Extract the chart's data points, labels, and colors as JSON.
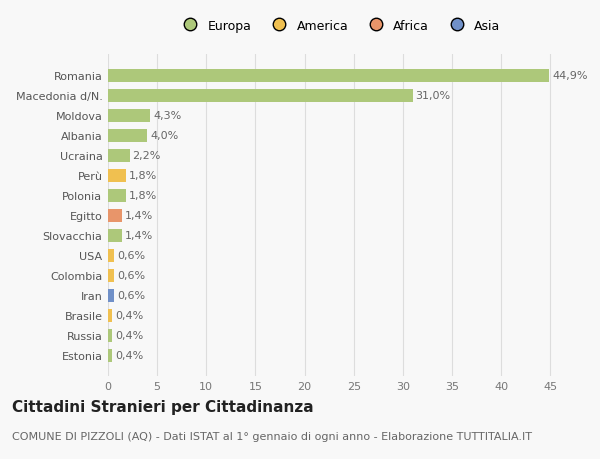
{
  "countries": [
    "Romania",
    "Macedonia d/N.",
    "Moldova",
    "Albania",
    "Ucraina",
    "Perù",
    "Polonia",
    "Egitto",
    "Slovacchia",
    "USA",
    "Colombia",
    "Iran",
    "Brasile",
    "Russia",
    "Estonia"
  ],
  "values": [
    44.9,
    31.0,
    4.3,
    4.0,
    2.2,
    1.8,
    1.8,
    1.4,
    1.4,
    0.6,
    0.6,
    0.6,
    0.4,
    0.4,
    0.4
  ],
  "labels": [
    "44,9%",
    "31,0%",
    "4,3%",
    "4,0%",
    "2,2%",
    "1,8%",
    "1,8%",
    "1,4%",
    "1,4%",
    "0,6%",
    "0,6%",
    "0,6%",
    "0,4%",
    "0,4%",
    "0,4%"
  ],
  "colors": [
    "#adc87a",
    "#adc87a",
    "#adc87a",
    "#adc87a",
    "#adc87a",
    "#f0c050",
    "#adc87a",
    "#e8956a",
    "#adc87a",
    "#f0c050",
    "#f0c050",
    "#7090c8",
    "#f0c050",
    "#adc87a",
    "#adc87a"
  ],
  "legend_labels": [
    "Europa",
    "America",
    "Africa",
    "Asia"
  ],
  "legend_colors": [
    "#adc87a",
    "#f0c050",
    "#e8956a",
    "#7090c8"
  ],
  "title": "Cittadini Stranieri per Cittadinanza",
  "subtitle": "COMUNE DI PIZZOLI (AQ) - Dati ISTAT al 1° gennaio di ogni anno - Elaborazione TUTTITALIA.IT",
  "xlim": [
    0,
    47
  ],
  "xticks": [
    0,
    5,
    10,
    15,
    20,
    25,
    30,
    35,
    40,
    45
  ],
  "background_color": "#f8f8f8",
  "grid_color": "#dddddd",
  "title_fontsize": 11,
  "subtitle_fontsize": 8,
  "label_fontsize": 8,
  "tick_fontsize": 8,
  "legend_fontsize": 9,
  "bar_height": 0.65
}
